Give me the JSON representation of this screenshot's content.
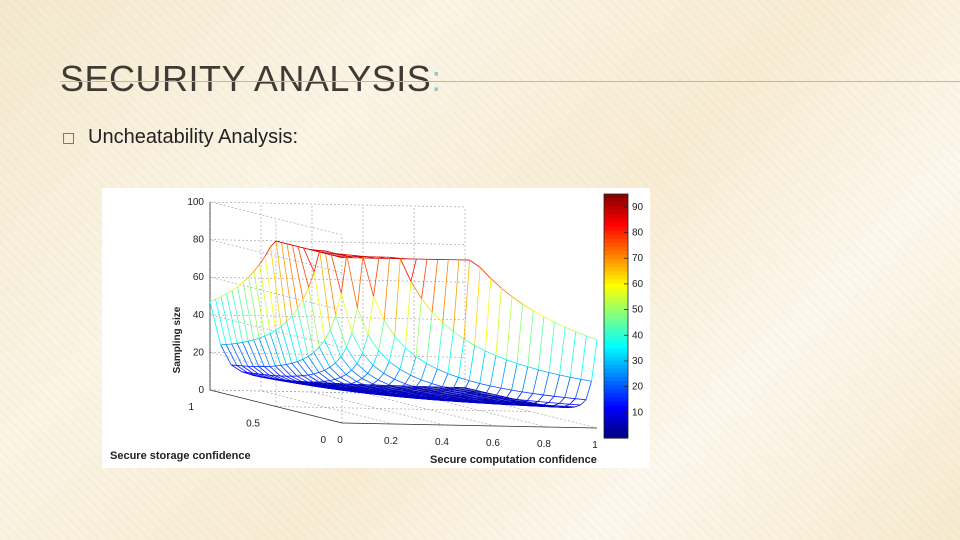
{
  "slide": {
    "title": "SECURITY ANALYSIS",
    "title_colon": ":",
    "bullet_icon": "square-bullet-icon",
    "bullet_text": "Uncheatability Analysis:"
  },
  "colors": {
    "title": "#3f3a33",
    "accent_rule": "#e0b760",
    "colon": "#8fc6d6"
  },
  "chart_data": {
    "type": "surface",
    "zlabel": "Sampling size",
    "xlabel": "Secure computation confidence",
    "ylabel": "Secure storage confidence",
    "z_ticks": [
      "0",
      "20",
      "40",
      "60",
      "80",
      "100"
    ],
    "x_ticks": [
      "0",
      "0.2",
      "0.4",
      "0.6",
      "0.8",
      "1"
    ],
    "y_ticks": [
      "0",
      "0.5",
      "1"
    ],
    "zlim": [
      0,
      100
    ],
    "xlim": [
      0,
      1
    ],
    "ylim": [
      0,
      1
    ],
    "colorbar": {
      "ticks": [
        "10",
        "20",
        "30",
        "40",
        "50",
        "60",
        "70",
        "80",
        "90"
      ],
      "range": [
        0,
        95
      ],
      "colormap": "jet"
    },
    "grid": true
  }
}
